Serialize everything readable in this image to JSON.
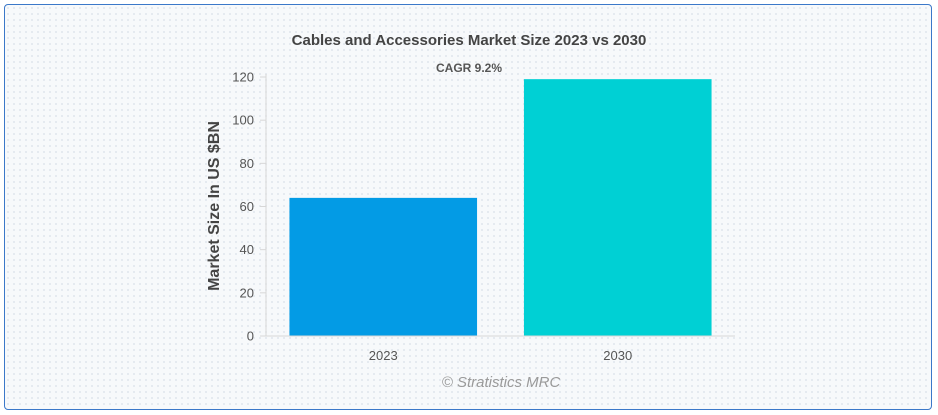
{
  "chart_data": {
    "type": "bar",
    "title": "Cables and Accessories Market Size 2023 vs 2030",
    "subtitle": "CAGR 9.2%",
    "xlabel": "",
    "ylabel": "Market Size In US $BN",
    "categories": [
      "2023",
      "2030"
    ],
    "values": [
      64,
      119
    ],
    "colors": [
      "#039be5",
      "#00d0d4"
    ],
    "ylim": [
      0,
      120
    ],
    "yticks": [
      0,
      20,
      40,
      60,
      80,
      100,
      120
    ],
    "grid": false,
    "legend": "none"
  },
  "credit": "© Stratistics MRC"
}
